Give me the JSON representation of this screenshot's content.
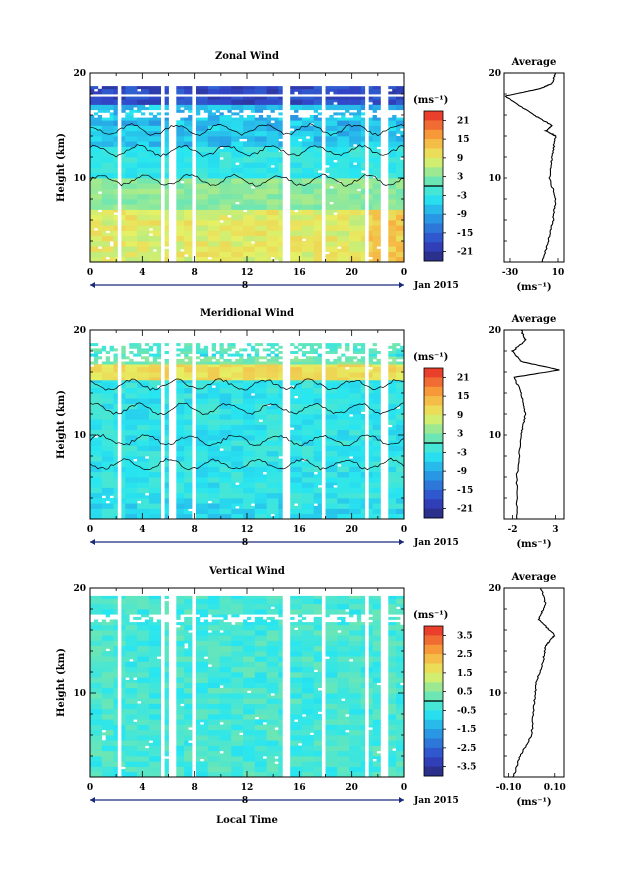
{
  "shared": {
    "ylabel": "Height (km)",
    "xlabel": "Local Time",
    "date_label": "Jan 2015",
    "day_label": "8",
    "avg_title": "Average",
    "unit_label": "(ms⁻¹)"
  },
  "chart_data": [
    {
      "type": "heatmap",
      "title": "Zonal Wind",
      "x_ticks": [
        "0",
        "4",
        "8",
        "12",
        "16",
        "20",
        "0"
      ],
      "xlim": [
        0,
        24
      ],
      "ylim": [
        2,
        20
      ],
      "y_ticks": [
        "20",
        "10"
      ],
      "colorbar": {
        "label": "(ms⁻¹)",
        "range": [
          -24,
          24
        ],
        "ticks": [
          "21",
          "15",
          "9",
          "3",
          "-3",
          "-9",
          "-15",
          "-21"
        ]
      },
      "profile": [
        [
          -3,
          2
        ],
        [
          2,
          4
        ],
        [
          6,
          6
        ],
        [
          8,
          8
        ],
        [
          3,
          10
        ],
        [
          5,
          12
        ],
        [
          8,
          14
        ],
        [
          0,
          14.5
        ],
        [
          5,
          15
        ],
        [
          -10,
          16
        ],
        [
          -34,
          17.8
        ],
        [
          -5,
          18.5
        ],
        [
          5,
          19
        ],
        [
          8,
          20
        ]
      ],
      "profile_xticks": [
        "-30",
        "10"
      ],
      "profile_xlim": [
        -35,
        15
      ]
    },
    {
      "type": "heatmap",
      "title": "Meridional Wind",
      "x_ticks": [
        "0",
        "4",
        "8",
        "12",
        "16",
        "20",
        "0"
      ],
      "xlim": [
        0,
        24
      ],
      "ylim": [
        2,
        20
      ],
      "y_ticks": [
        "20",
        "10"
      ],
      "colorbar": {
        "label": "(ms⁻¹)",
        "range": [
          -24,
          24
        ],
        "ticks": [
          "21",
          "15",
          "9",
          "3",
          "-3",
          "-9",
          "-15",
          "-21"
        ]
      },
      "profile": [
        [
          -1.5,
          2
        ],
        [
          -1.5,
          6
        ],
        [
          -1,
          10
        ],
        [
          -0.5,
          12
        ],
        [
          -1,
          14
        ],
        [
          -1.8,
          15.5
        ],
        [
          3.5,
          16.2
        ],
        [
          -1,
          17
        ],
        [
          -2,
          18
        ],
        [
          -0.5,
          19
        ],
        [
          -1,
          20
        ]
      ],
      "profile_xticks": [
        "-2",
        "3"
      ],
      "profile_xlim": [
        -3,
        4
      ]
    },
    {
      "type": "heatmap",
      "title": "Vertical Wind",
      "x_ticks": [
        "0",
        "4",
        "8",
        "12",
        "16",
        "20",
        "0"
      ],
      "xlim": [
        0,
        24
      ],
      "ylim": [
        2,
        20
      ],
      "y_ticks": [
        "20",
        "10"
      ],
      "colorbar": {
        "label": "(ms⁻¹)",
        "range": [
          -4,
          4
        ],
        "ticks": [
          "3.5",
          "2.5",
          "1.5",
          "0.5",
          "-0.5",
          "-1.5",
          "-2.5",
          "-3.5"
        ]
      },
      "profile": [
        [
          -0.08,
          2
        ],
        [
          -0.05,
          4
        ],
        [
          0,
          6
        ],
        [
          0.01,
          9
        ],
        [
          0.02,
          11
        ],
        [
          0.05,
          13
        ],
        [
          0.06,
          14.5
        ],
        [
          0.1,
          15.5
        ],
        [
          0.03,
          17
        ],
        [
          0.06,
          18.5
        ],
        [
          0.04,
          20
        ]
      ],
      "profile_xticks": [
        "-0.10",
        "0.10"
      ],
      "profile_xlim": [
        -0.12,
        0.14
      ]
    }
  ]
}
